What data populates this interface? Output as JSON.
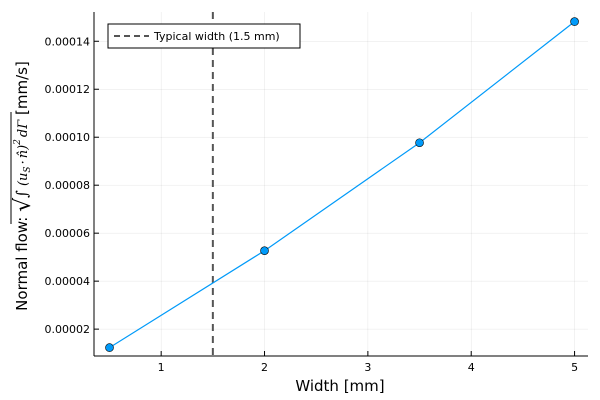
{
  "chart_data": {
    "type": "line",
    "xlabel": "Width [mm]",
    "ylabel": {
      "prefix": "Normal flow: ",
      "integral": "∫",
      "integrand": "(u",
      "subscript": "S",
      "dot": "·",
      "normal": "n̂)",
      "power": "2",
      "differential": "dΓ",
      "unit": " [mm/s]"
    },
    "xlim": [
      0.35,
      5.13
    ],
    "ylim": [
      8.8e-06,
      0.0001522
    ],
    "xticks": [
      {
        "value": 1,
        "label": "1"
      },
      {
        "value": 2,
        "label": "2"
      },
      {
        "value": 3,
        "label": "3"
      },
      {
        "value": 4,
        "label": "4"
      },
      {
        "value": 5,
        "label": "5"
      }
    ],
    "yticks": [
      {
        "value": 2e-05,
        "label": "0.00002"
      },
      {
        "value": 4e-05,
        "label": "0.00004"
      },
      {
        "value": 6e-05,
        "label": "0.00006"
      },
      {
        "value": 8e-05,
        "label": "0.00008"
      },
      {
        "value": 0.0001,
        "label": "0.00010"
      },
      {
        "value": 0.00012,
        "label": "0.00012"
      },
      {
        "value": 0.00014,
        "label": "0.00014"
      }
    ],
    "grid": true,
    "legend_position": "top-left",
    "series": [
      {
        "x": [
          0.5,
          2.0,
          3.5,
          5.0
        ],
        "y": [
          1.23e-05,
          5.27e-05,
          9.77e-05,
          0.0001482
        ],
        "color": "#009af9",
        "marker": "circle"
      }
    ],
    "reference_lines": [
      {
        "orientation": "vertical",
        "x": 1.5,
        "label": "Typical width (1.5 mm)",
        "style": "dashed",
        "color": "#555555"
      }
    ]
  }
}
